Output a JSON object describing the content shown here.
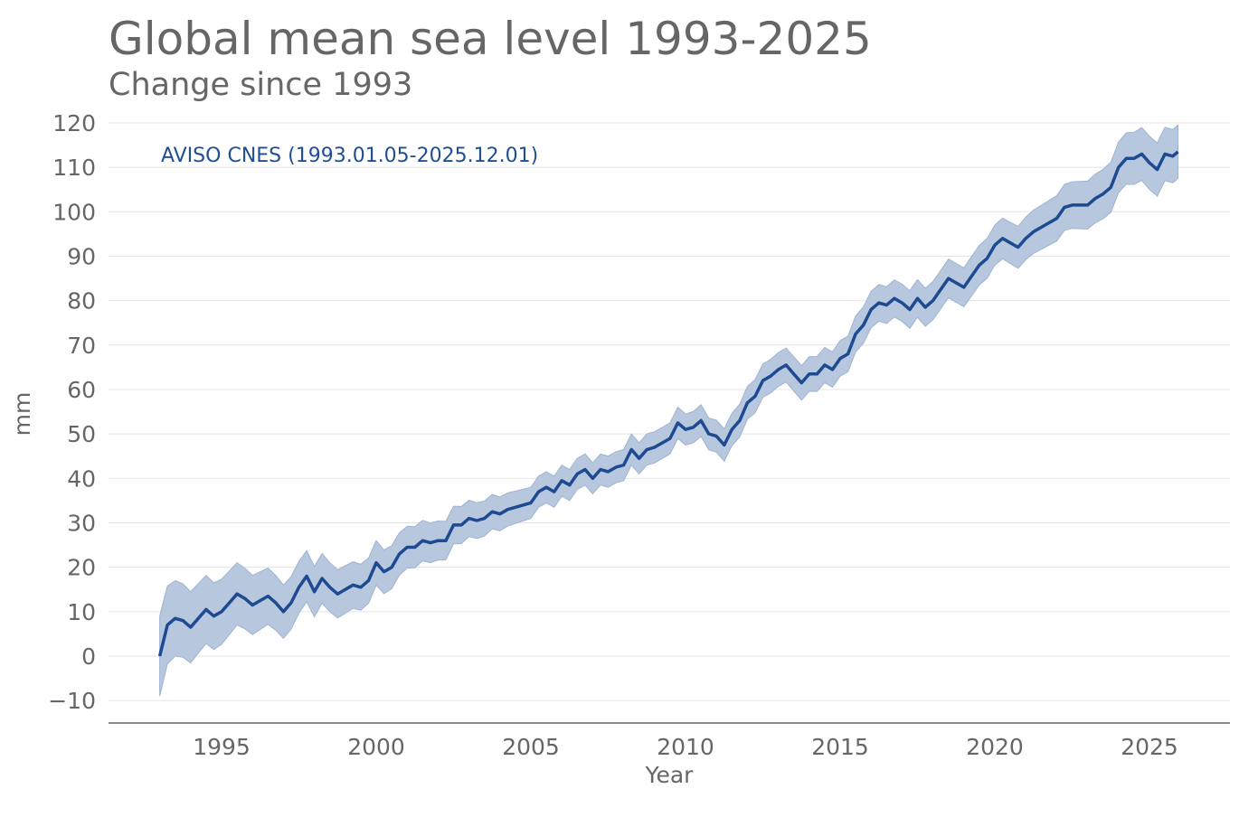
{
  "chart_data": {
    "type": "line",
    "title": "Global mean sea level 1993-2025",
    "subtitle": "Change since 1993",
    "xlabel": "Year",
    "ylabel": "mm",
    "xlim": [
      1991.35,
      2027.6
    ],
    "ylim": [
      -15,
      120
    ],
    "xticks": [
      1995,
      2000,
      2005,
      2010,
      2015,
      2020,
      2025
    ],
    "yticks": [
      -10,
      0,
      10,
      20,
      30,
      40,
      50,
      60,
      70,
      80,
      90,
      100,
      110,
      120
    ],
    "ytick_labels": [
      "−10",
      "0",
      "10",
      "20",
      "30",
      "40",
      "50",
      "60",
      "70",
      "80",
      "90",
      "100",
      "110",
      "120"
    ],
    "grid": true,
    "series": [
      {
        "name": "AVISO CNES (1993.01.05-2025.12.01)",
        "color": "#1d4a91",
        "band_color": "#b7c7de",
        "x": [
          1993.0,
          1993.25,
          1993.5,
          1993.75,
          1994.0,
          1994.25,
          1994.5,
          1994.75,
          1995.0,
          1995.25,
          1995.5,
          1995.75,
          1996.0,
          1996.25,
          1996.5,
          1996.75,
          1997.0,
          1997.25,
          1997.5,
          1997.75,
          1998.0,
          1998.25,
          1998.5,
          1998.75,
          1999.0,
          1999.25,
          1999.5,
          1999.75,
          2000.0,
          2000.25,
          2000.5,
          2000.75,
          2001.0,
          2001.25,
          2001.5,
          2001.75,
          2002.0,
          2002.25,
          2002.5,
          2002.75,
          2003.0,
          2003.25,
          2003.5,
          2003.75,
          2004.0,
          2004.25,
          2004.5,
          2004.75,
          2005.0,
          2005.25,
          2005.5,
          2005.75,
          2006.0,
          2006.25,
          2006.5,
          2006.75,
          2007.0,
          2007.25,
          2007.5,
          2007.75,
          2008.0,
          2008.25,
          2008.5,
          2008.75,
          2009.0,
          2009.25,
          2009.5,
          2009.75,
          2010.0,
          2010.25,
          2010.5,
          2010.75,
          2011.0,
          2011.25,
          2011.5,
          2011.75,
          2012.0,
          2012.25,
          2012.5,
          2012.75,
          2013.0,
          2013.25,
          2013.5,
          2013.75,
          2014.0,
          2014.25,
          2014.5,
          2014.75,
          2015.0,
          2015.25,
          2015.5,
          2015.75,
          2016.0,
          2016.25,
          2016.5,
          2016.75,
          2017.0,
          2017.25,
          2017.5,
          2017.75,
          2018.0,
          2018.25,
          2018.5,
          2018.75,
          2019.0,
          2019.25,
          2019.5,
          2019.75,
          2020.0,
          2020.25,
          2020.5,
          2020.75,
          2021.0,
          2021.25,
          2021.5,
          2021.75,
          2022.0,
          2022.25,
          2022.5,
          2022.75,
          2023.0,
          2023.25,
          2023.5,
          2023.75,
          2024.0,
          2024.25,
          2024.5,
          2024.75,
          2025.0,
          2025.25,
          2025.5,
          2025.75,
          2025.92
        ],
        "y": [
          0,
          7,
          8.5,
          8,
          6.5,
          8.5,
          10.5,
          9,
          10,
          12,
          14,
          13,
          11.5,
          12.5,
          13.5,
          12,
          10,
          12,
          15.5,
          18,
          14.5,
          17.5,
          15.5,
          14,
          15,
          16,
          15.5,
          17,
          21,
          19,
          20,
          23,
          24.5,
          24.5,
          26,
          25.5,
          26,
          26,
          29.5,
          29.5,
          31,
          30.5,
          31,
          32.5,
          32,
          33,
          33.5,
          34,
          34.5,
          37,
          38,
          37,
          39.5,
          38.5,
          41,
          42,
          40,
          42,
          41.5,
          42.5,
          43,
          46.5,
          44.5,
          46.5,
          47,
          48,
          49,
          52.5,
          51,
          51.5,
          53,
          50,
          49.5,
          47.5,
          51,
          53,
          57,
          58.5,
          62,
          63,
          64.5,
          65.5,
          63.5,
          61.5,
          63.5,
          63.5,
          65.5,
          64.5,
          67,
          68,
          72.5,
          74.5,
          78,
          79.5,
          79,
          80.5,
          79.5,
          78,
          80.5,
          78.5,
          80,
          82.5,
          85,
          84,
          83,
          85.5,
          88,
          89.5,
          92.5,
          94,
          93,
          92,
          94,
          95.5,
          96.5,
          97.5,
          98.5,
          101,
          101.5,
          101.5,
          101.5,
          103,
          104,
          105.5,
          110,
          112,
          112,
          113,
          111,
          109.5,
          113,
          112.5,
          113.5
        ],
        "uncertainty_knots": {
          "x": [
            1993,
            1994,
            1997,
            2000,
            2005,
            2010,
            2015,
            2020,
            2025,
            2026
          ],
          "halfwidth": [
            9,
            8,
            6,
            5,
            3.5,
            3.5,
            4,
            4.5,
            6,
            6
          ]
        }
      }
    ]
  }
}
